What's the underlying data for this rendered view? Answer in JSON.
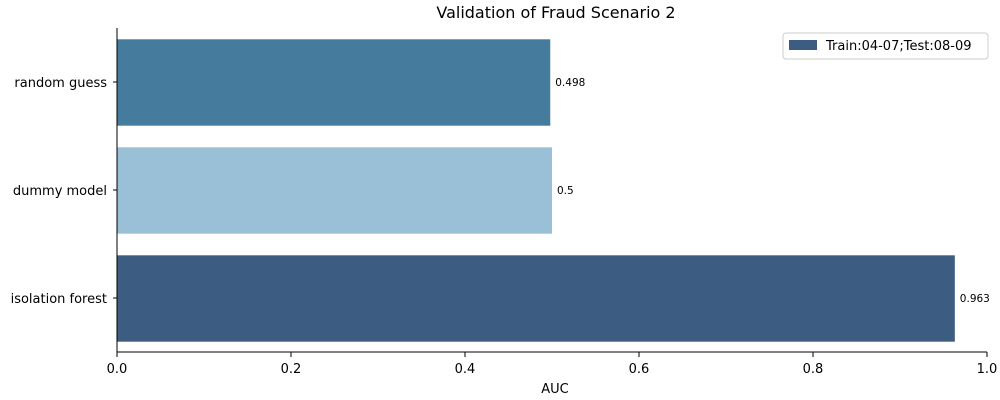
{
  "chart_data": {
    "type": "bar",
    "orientation": "horizontal",
    "title": "Validation of Fraud Scenario 2",
    "xlabel": "AUC",
    "ylabel": "",
    "xlim": [
      0,
      1.0
    ],
    "xticks": [
      0.0,
      0.2,
      0.4,
      0.6,
      0.8,
      1.0
    ],
    "xtick_labels": [
      "0.0",
      "0.2",
      "0.4",
      "0.6",
      "0.8",
      "1.0"
    ],
    "categories": [
      "random guess",
      "dummy model",
      "isolation forest"
    ],
    "values": [
      0.498,
      0.5,
      0.963
    ],
    "value_labels": [
      "0.498",
      "0.5",
      "0.963"
    ],
    "bar_colors": [
      "#457c9e",
      "#9ac0d8",
      "#3d5c82"
    ],
    "series": [
      {
        "name": "Train:04-07;Test:08-09",
        "color": "#3d5c82"
      }
    ],
    "legend_position": "top-right",
    "grid": false
  }
}
